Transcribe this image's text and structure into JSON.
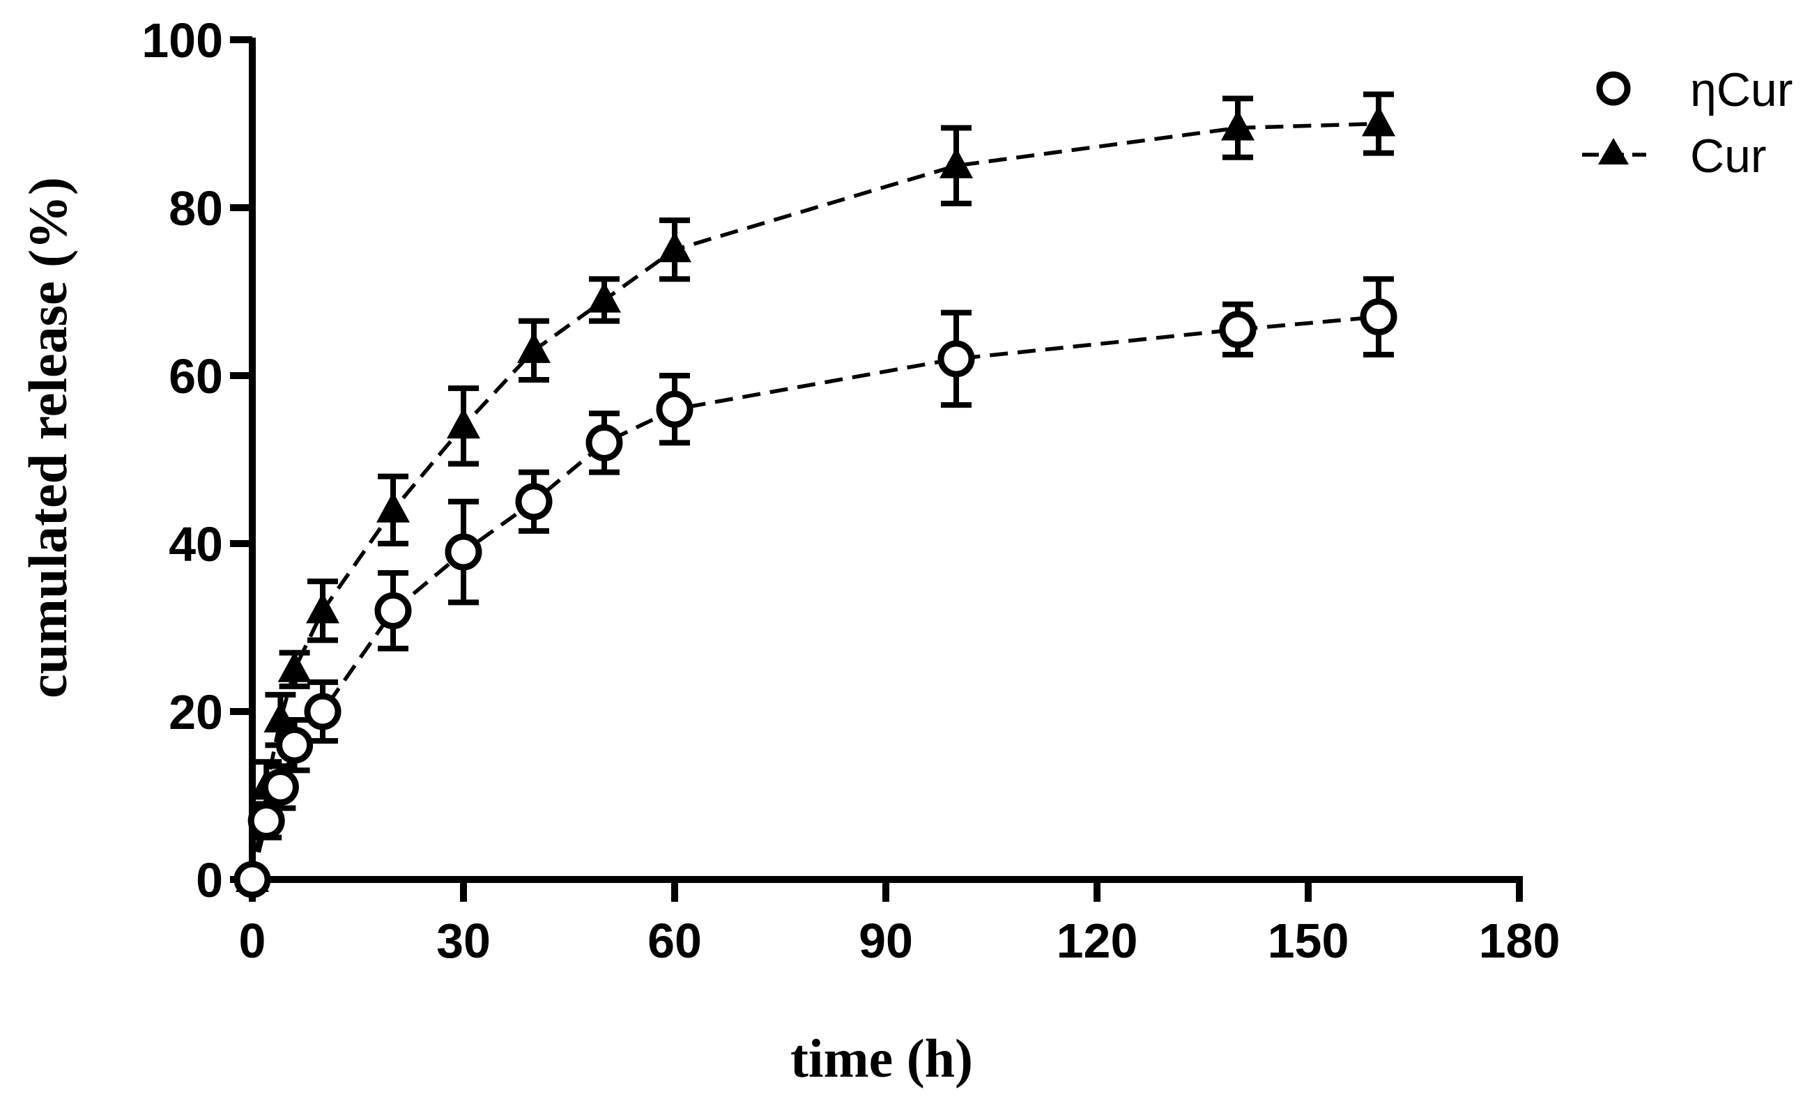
{
  "chart_data": {
    "type": "line",
    "title": "",
    "xlabel": "time (h)",
    "ylabel": "cumulated release (%)",
    "xlim": [
      0,
      180
    ],
    "ylim": [
      0,
      100
    ],
    "xticks": [
      0,
      30,
      60,
      90,
      120,
      150,
      180
    ],
    "yticks": [
      0,
      20,
      40,
      60,
      80,
      100
    ],
    "xtick_labels": [
      "0",
      "30",
      "60",
      "90",
      "120",
      "150",
      "180"
    ],
    "ytick_labels": [
      "0",
      "20",
      "40",
      "60",
      "80",
      "100"
    ],
    "grid": false,
    "legend_position": "top-right",
    "series": [
      {
        "name": "ηCur",
        "marker": "open-circle",
        "line_style": "dashed",
        "x": [
          0,
          2,
          4,
          6,
          10,
          20,
          30,
          40,
          50,
          60,
          100,
          140,
          160
        ],
        "y": [
          0,
          7,
          11,
          16,
          20,
          32,
          39,
          45,
          52,
          56,
          62,
          65.5,
          67
        ],
        "error": [
          0,
          2,
          2.5,
          3,
          3.5,
          4.5,
          6,
          3.5,
          3.5,
          4,
          5.5,
          3,
          4.5
        ]
      },
      {
        "name": "Cur",
        "marker": "filled-triangle",
        "line_style": "dashed",
        "x": [
          0,
          2,
          4,
          6,
          10,
          20,
          30,
          40,
          50,
          60,
          100,
          140,
          160
        ],
        "y": [
          0,
          11,
          19,
          25,
          32,
          44,
          54,
          63,
          69,
          75,
          85,
          89.5,
          90
        ],
        "error": [
          0,
          3,
          3,
          2,
          3.5,
          4,
          4.5,
          3.5,
          2.5,
          3.5,
          4.5,
          3.5,
          3.5
        ]
      }
    ]
  }
}
